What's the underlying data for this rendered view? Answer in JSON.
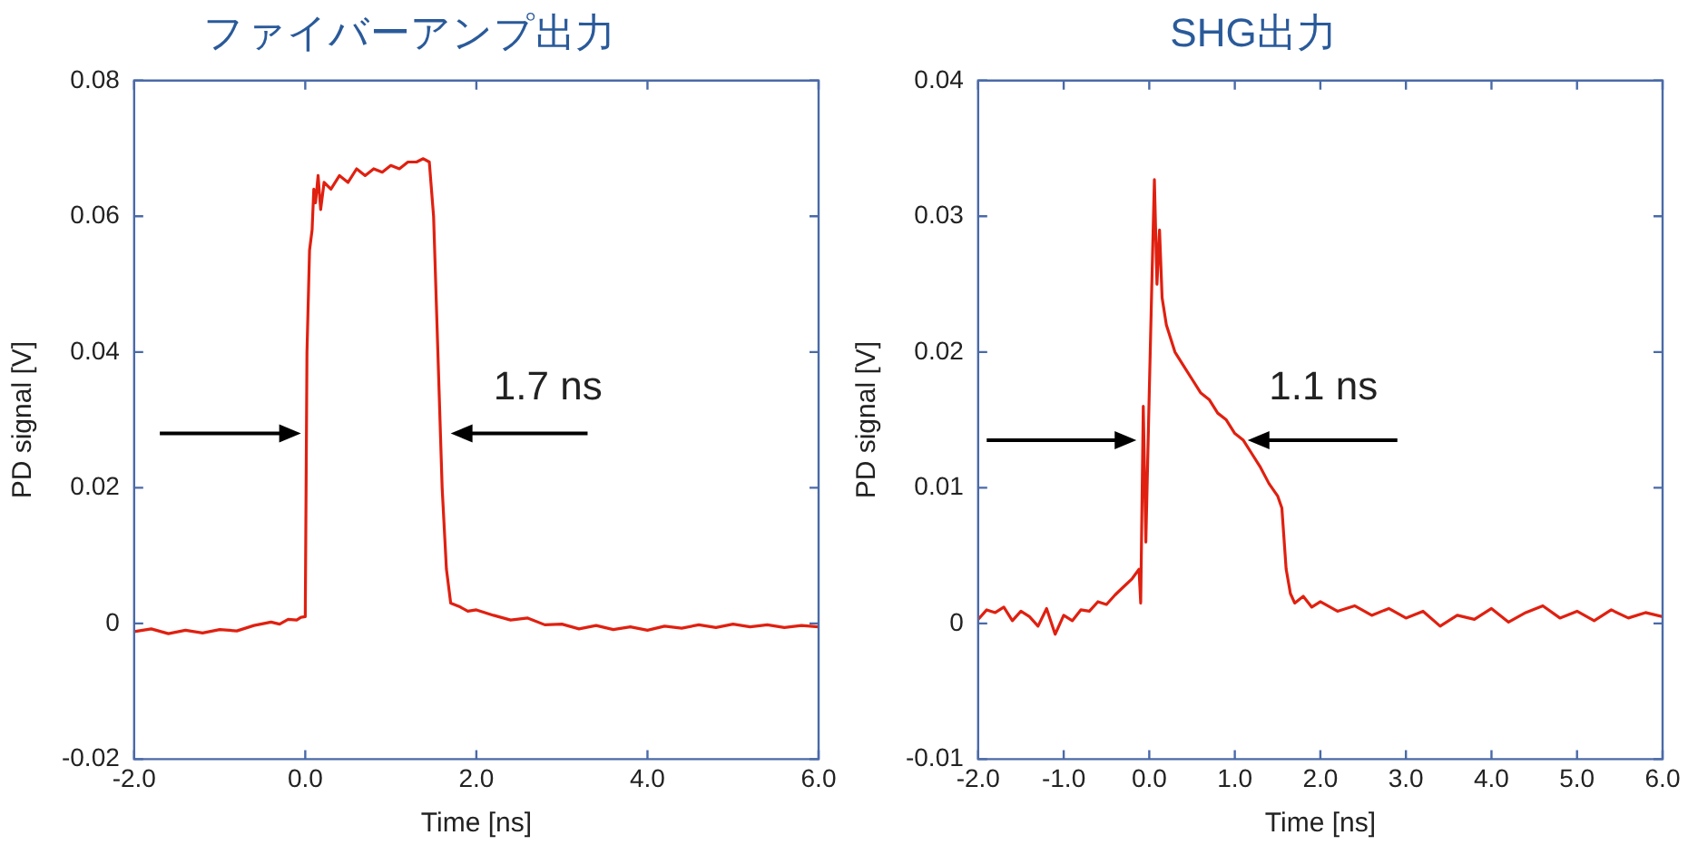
{
  "chart_data": [
    {
      "type": "line",
      "title": "ファイバーアンプ出力",
      "xlabel": "Time [ns]",
      "ylabel": "PD signal [V]",
      "xlim": [
        -2,
        6
      ],
      "ylim": [
        -0.02,
        0.08
      ],
      "xticks": [
        {
          "value": -2,
          "label": "-2.0"
        },
        {
          "value": 0,
          "label": "0.0"
        },
        {
          "value": 2,
          "label": "2.0"
        },
        {
          "value": 4,
          "label": "4.0"
        },
        {
          "value": 6,
          "label": "6.0"
        }
      ],
      "yticks": [
        -0.02,
        0,
        0.02,
        0.04,
        0.06,
        0.08
      ],
      "grid": false,
      "legend": false,
      "marker": "none",
      "line_style": "solid",
      "annotations": [
        "1.7 ns"
      ],
      "series": [
        {
          "color": "#e02010",
          "x": [
            -2.0,
            -1.8,
            -1.6,
            -1.4,
            -1.2,
            -1.0,
            -0.8,
            -0.6,
            -0.4,
            -0.3,
            -0.2,
            -0.1,
            -0.05,
            0.0,
            0.02,
            0.05,
            0.08,
            0.1,
            0.12,
            0.15,
            0.18,
            0.22,
            0.3,
            0.4,
            0.5,
            0.6,
            0.7,
            0.8,
            0.9,
            1.0,
            1.1,
            1.2,
            1.3,
            1.38,
            1.45,
            1.5,
            1.55,
            1.6,
            1.65,
            1.7,
            1.8,
            1.9,
            2.0,
            2.2,
            2.4,
            2.6,
            2.8,
            3.0,
            3.2,
            3.4,
            3.6,
            3.8,
            4.0,
            4.2,
            4.4,
            4.6,
            4.8,
            5.0,
            5.2,
            5.4,
            5.6,
            5.8,
            6.0
          ],
          "values": [
            -0.0012,
            -0.0008,
            -0.0015,
            -0.001,
            -0.0014,
            -0.0009,
            -0.0011,
            -0.0003,
            0.0002,
            -0.0001,
            0.0006,
            0.0005,
            0.0009,
            0.001,
            0.04,
            0.055,
            0.058,
            0.064,
            0.062,
            0.066,
            0.061,
            0.065,
            0.064,
            0.066,
            0.065,
            0.067,
            0.066,
            0.067,
            0.0665,
            0.0675,
            0.067,
            0.068,
            0.068,
            0.0685,
            0.068,
            0.06,
            0.04,
            0.02,
            0.008,
            0.003,
            0.0025,
            0.0018,
            0.002,
            0.0012,
            0.0005,
            0.0008,
            -0.0002,
            -0.0001,
            -0.0008,
            -0.0003,
            -0.0009,
            -0.0005,
            -0.001,
            -0.0004,
            -0.0007,
            -0.0002,
            -0.0006,
            -0.0001,
            -0.0005,
            -0.0002,
            -0.0006,
            -0.0003,
            -0.0005
          ]
        }
      ]
    },
    {
      "type": "line",
      "title": "SHG出力",
      "xlabel": "Time [ns]",
      "ylabel": "PD signal [V]",
      "xlim": [
        -2,
        6
      ],
      "ylim": [
        -0.01,
        0.04
      ],
      "xticks": [
        {
          "value": -2,
          "label": "-2.0"
        },
        {
          "value": -1,
          "label": "-1.0"
        },
        {
          "value": 0,
          "label": "0.0"
        },
        {
          "value": 1,
          "label": "1.0"
        },
        {
          "value": 2,
          "label": "2.0"
        },
        {
          "value": 3,
          "label": "3.0"
        },
        {
          "value": 4,
          "label": "4.0"
        },
        {
          "value": 5,
          "label": "5.0"
        },
        {
          "value": 6,
          "label": "6.0"
        }
      ],
      "yticks": [
        -0.01,
        0,
        0.01,
        0.02,
        0.03,
        0.04
      ],
      "grid": false,
      "legend": false,
      "marker": "none",
      "line_style": "solid",
      "annotations": [
        "1.1 ns"
      ],
      "series": [
        {
          "color": "#e02010",
          "x": [
            -2.0,
            -1.9,
            -1.8,
            -1.7,
            -1.6,
            -1.5,
            -1.4,
            -1.3,
            -1.2,
            -1.1,
            -1.0,
            -0.9,
            -0.8,
            -0.7,
            -0.6,
            -0.5,
            -0.4,
            -0.3,
            -0.2,
            -0.12,
            -0.1,
            -0.07,
            -0.04,
            0.0,
            0.03,
            0.06,
            0.09,
            0.12,
            0.15,
            0.2,
            0.3,
            0.4,
            0.5,
            0.6,
            0.7,
            0.8,
            0.9,
            1.0,
            1.1,
            1.2,
            1.3,
            1.4,
            1.5,
            1.55,
            1.6,
            1.65,
            1.7,
            1.8,
            1.9,
            2.0,
            2.2,
            2.4,
            2.6,
            2.8,
            3.0,
            3.2,
            3.4,
            3.6,
            3.8,
            4.0,
            4.2,
            4.4,
            4.6,
            4.8,
            5.0,
            5.2,
            5.4,
            5.6,
            5.8,
            6.0
          ],
          "values": [
            0.0003,
            0.001,
            0.0008,
            0.0012,
            0.0002,
            0.0009,
            0.0005,
            -0.0002,
            0.0011,
            -0.0008,
            0.0006,
            0.0002,
            0.001,
            0.0009,
            0.0016,
            0.0014,
            0.0021,
            0.0027,
            0.0033,
            0.004,
            0.0015,
            0.016,
            0.006,
            0.017,
            0.025,
            0.0327,
            0.025,
            0.029,
            0.024,
            0.022,
            0.02,
            0.019,
            0.018,
            0.017,
            0.0165,
            0.0155,
            0.015,
            0.014,
            0.0135,
            0.0125,
            0.0115,
            0.0103,
            0.0094,
            0.0085,
            0.004,
            0.0022,
            0.0015,
            0.002,
            0.0012,
            0.0016,
            0.0009,
            0.0013,
            0.0006,
            0.0011,
            0.0004,
            0.0009,
            -0.0002,
            0.0006,
            0.0003,
            0.0011,
            0.0001,
            0.0008,
            0.0013,
            0.0004,
            0.0009,
            0.0002,
            0.001,
            0.0004,
            0.0008,
            0.0005
          ]
        }
      ]
    }
  ]
}
